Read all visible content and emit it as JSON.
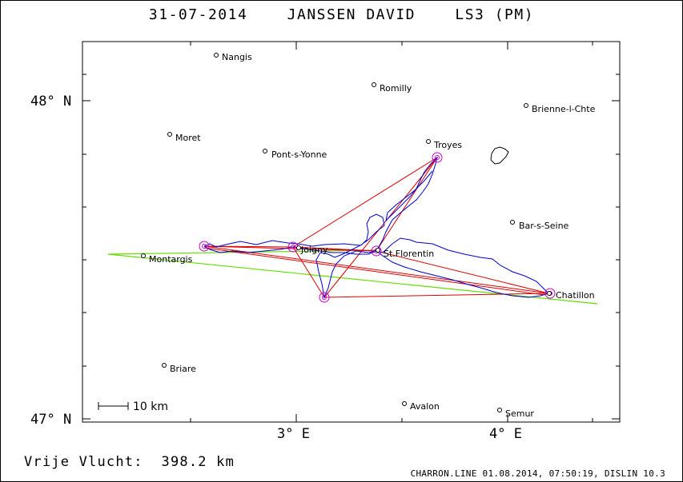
{
  "header": {
    "title": "31-07-2014    JANSSEN DAVID    LS3 (PM)"
  },
  "footer": {
    "distance_label": "Vrije Vlucht:  398.2 km",
    "credit": "CHARRON.LINE 01.08.2014, 07:50:19, DISLIN 10.3"
  },
  "map": {
    "lat_labels": [
      "48° N",
      "47° N"
    ],
    "lon_labels": [
      "3° E",
      "4° E"
    ],
    "scale_label": "10 km",
    "towns": [
      {
        "name": "Nangis"
      },
      {
        "name": "Romilly"
      },
      {
        "name": "Brienne-l-Chte"
      },
      {
        "name": "Moret"
      },
      {
        "name": "Troyes"
      },
      {
        "name": "Pont-s-Yonne"
      },
      {
        "name": "Bar-s-Seine"
      },
      {
        "name": "Montargis"
      },
      {
        "name": "Joigny"
      },
      {
        "name": "St.Florentin"
      },
      {
        "name": "Chatillon"
      },
      {
        "name": "Briare"
      },
      {
        "name": "Avalon"
      },
      {
        "name": "Semur"
      }
    ],
    "colors": {
      "track": "#0000cc",
      "task_lines": "#dd0000",
      "sector_lines": "#66dd00",
      "turnpoint_markers": "#cc00cc",
      "frame": "#000000"
    }
  }
}
